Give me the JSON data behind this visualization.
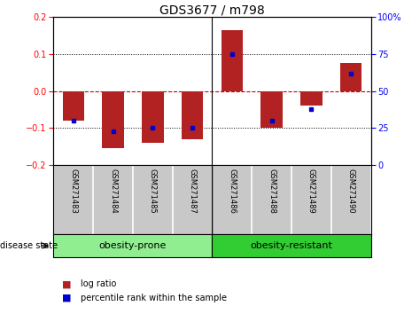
{
  "title": "GDS3677 / m798",
  "samples": [
    "GSM271483",
    "GSM271484",
    "GSM271485",
    "GSM271487",
    "GSM271486",
    "GSM271488",
    "GSM271489",
    "GSM271490"
  ],
  "log_ratios": [
    -0.08,
    -0.155,
    -0.14,
    -0.13,
    0.165,
    -0.1,
    -0.04,
    0.075
  ],
  "percentile_ranks": [
    30,
    23,
    25,
    25,
    75,
    30,
    38,
    62
  ],
  "ylim_left": [
    -0.2,
    0.2
  ],
  "ylim_right": [
    0,
    100
  ],
  "left_yticks": [
    -0.2,
    -0.1,
    0,
    0.1,
    0.2
  ],
  "right_yticks": [
    0,
    25,
    50,
    75,
    100
  ],
  "bar_color": "#B22222",
  "dot_color": "#0000CC",
  "zero_line_color": "#CC0000",
  "grid_color": "#000000",
  "group1_label": "obesity-prone",
  "group2_label": "obesity-resistant",
  "group1_color": "#90EE90",
  "group2_color": "#32CD32",
  "disease_state_label": "disease state",
  "legend_logratio": "log ratio",
  "legend_percentile": "percentile rank within the sample",
  "background_color": "#FFFFFF",
  "sample_bg_color": "#C8C8C8",
  "bar_width": 0.55,
  "title_fontsize": 10,
  "tick_fontsize": 7,
  "sample_fontsize": 6,
  "group_fontsize": 8,
  "legend_fontsize": 7
}
